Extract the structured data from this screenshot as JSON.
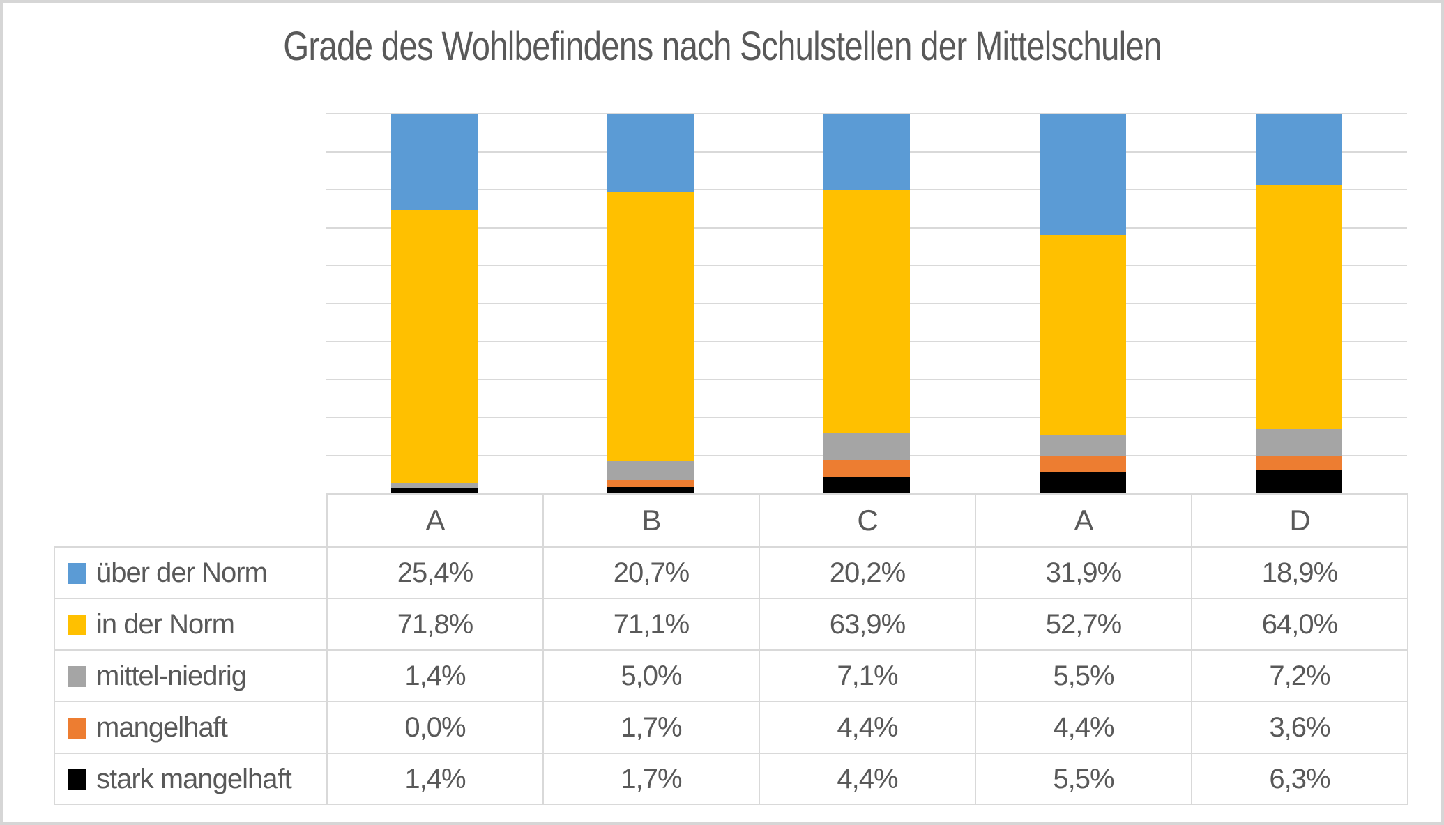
{
  "chart_data": {
    "type": "bar",
    "stacked": true,
    "percent_stacked": true,
    "title": "Grade des Wohlbefindens nach Schulstellen der Mittelschulen",
    "categories": [
      "A",
      "B",
      "C",
      "A",
      "D"
    ],
    "series": [
      {
        "name": "über der Norm",
        "color": "#5B9BD5",
        "values": [
          25.4,
          20.7,
          20.2,
          31.9,
          18.9
        ],
        "value_labels": [
          "25,4%",
          "20,7%",
          "20,2%",
          "31,9%",
          "18,9%"
        ]
      },
      {
        "name": "in der Norm",
        "color": "#FFC000",
        "values": [
          71.8,
          71.1,
          63.9,
          52.7,
          64.0
        ],
        "value_labels": [
          "71,8%",
          "71,1%",
          "63,9%",
          "52,7%",
          "64,0%"
        ]
      },
      {
        "name": "mittel-niedrig",
        "color": "#A5A5A5",
        "values": [
          1.4,
          5.0,
          7.1,
          5.5,
          7.2
        ],
        "value_labels": [
          "1,4%",
          "5,0%",
          "7,1%",
          "5,5%",
          "7,2%"
        ]
      },
      {
        "name": "mangelhaft",
        "color": "#ED7D31",
        "values": [
          0.0,
          1.7,
          4.4,
          4.4,
          3.6
        ],
        "value_labels": [
          "0,0%",
          "1,7%",
          "4,4%",
          "4,4%",
          "3,6%"
        ]
      },
      {
        "name": "stark mangelhaft",
        "color": "#000000",
        "values": [
          1.4,
          1.7,
          4.4,
          5.5,
          6.3
        ],
        "value_labels": [
          "1,4%",
          "1,7%",
          "4,4%",
          "5,5%",
          "6,3%"
        ]
      }
    ],
    "stacking_order_bottom_to_top": [
      "stark mangelhaft",
      "mangelhaft",
      "mittel-niedrig",
      "in der Norm",
      "über der Norm"
    ],
    "ylim": [
      0,
      100
    ],
    "gridline_step_percent": 10,
    "grid_on": true,
    "y_axis_labels_visible": false,
    "legend_position": "table-left-column",
    "xlabel": "",
    "ylabel": ""
  },
  "colors": {
    "text": "#595959",
    "gridline": "#D9D9D9",
    "table_border": "#D9D9D9",
    "canvas_border": "#D6D6D6",
    "background": "#FFFFFF"
  }
}
